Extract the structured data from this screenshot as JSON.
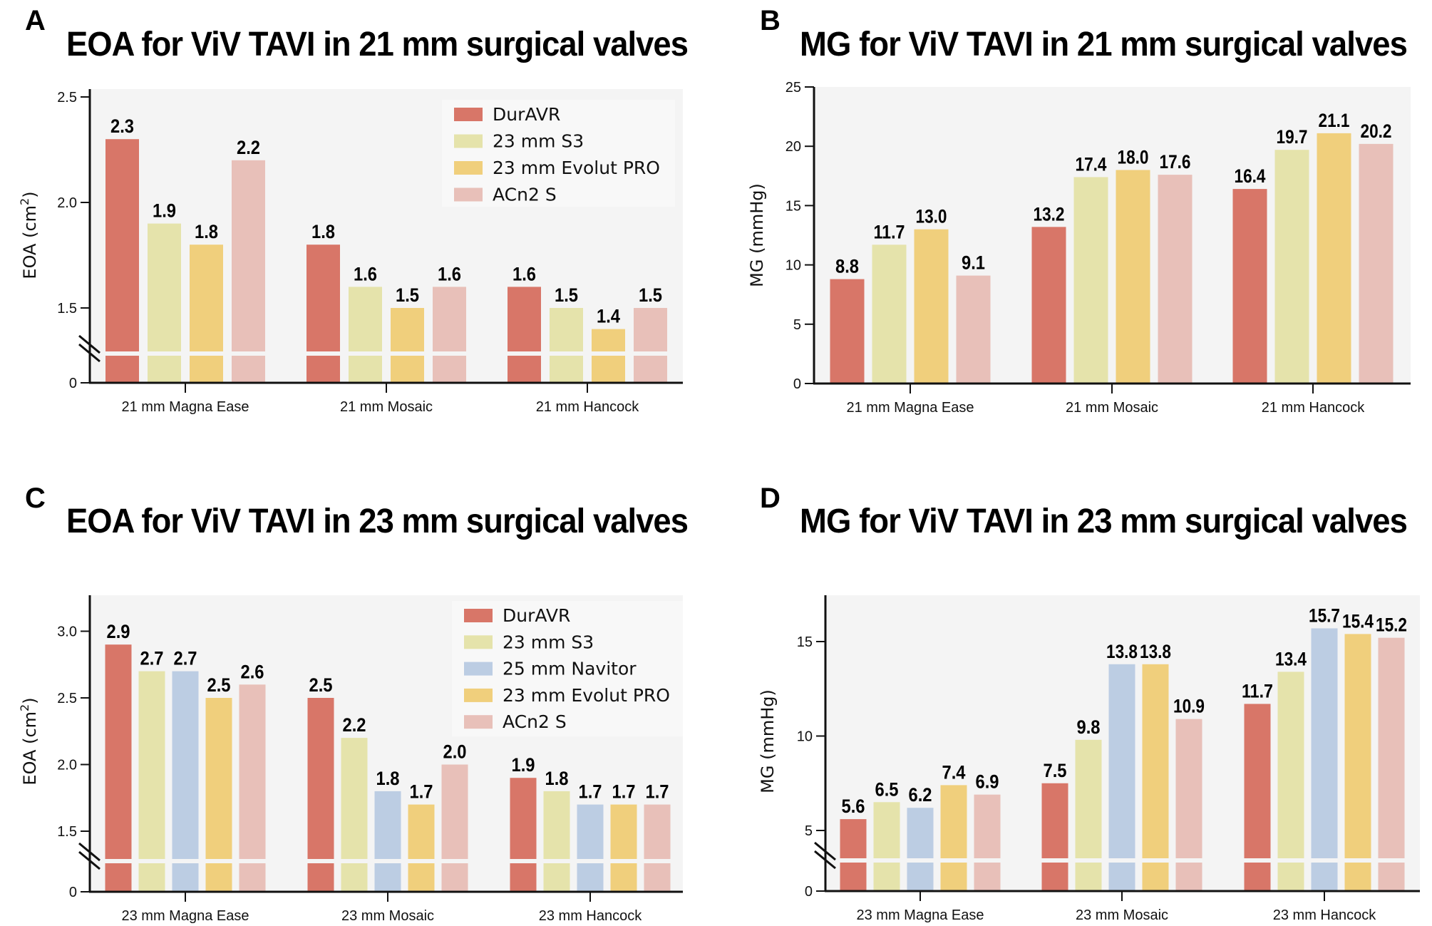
{
  "chart_data": [
    {
      "panel": "A",
      "type": "bar",
      "title": "EOA for ViV TAVI in 21 mm surgical valves",
      "ylabel": "EOA (cm²)",
      "ylabel_main": "EOA (cm",
      "ylabel_sup": "2",
      "ylabel_close": ")",
      "xlabel": "",
      "categories": [
        "21 mm Magna Ease",
        "21 mm Mosaic",
        "21 mm Hancock"
      ],
      "yticks": [
        "2.5",
        "2.0",
        "1.5",
        "0"
      ],
      "ylim": [
        0,
        2.5
      ],
      "axis_break": true,
      "legend_position": "top-right",
      "grid": false,
      "series": [
        {
          "name": "DurAVR",
          "color": "#d87668",
          "values": [
            2.3,
            1.8,
            1.6
          ],
          "labels": [
            "2.3",
            "1.8",
            "1.6"
          ]
        },
        {
          "name": "23 mm S3",
          "color": "#e5e3ab",
          "values": [
            1.9,
            1.6,
            1.5
          ],
          "labels": [
            "1.9",
            "1.6",
            "1.5"
          ]
        },
        {
          "name": "23 mm Evolut PRO",
          "color": "#f0cf7c",
          "values": [
            1.8,
            1.5,
            1.4
          ],
          "labels": [
            "1.8",
            "1.5",
            "1.4"
          ]
        },
        {
          "name": "ACn2 S",
          "color": "#e8c0b9",
          "values": [
            2.2,
            1.6,
            1.5
          ],
          "labels": [
            "2.2",
            "1.6",
            "1.5"
          ]
        }
      ]
    },
    {
      "panel": "B",
      "type": "bar",
      "title": "MG for ViV TAVI in 21 mm surgical valves",
      "ylabel": "MG (mmHg)",
      "ylabel_main": "MG (mmHg)",
      "ylabel_sup": "",
      "ylabel_close": "",
      "xlabel": "",
      "categories": [
        "21 mm Magna Ease",
        "21 mm Mosaic",
        "21 mm Hancock"
      ],
      "yticks": [
        "25",
        "20",
        "15",
        "10",
        "5",
        "0"
      ],
      "ylim": [
        0,
        25
      ],
      "axis_break": false,
      "legend_position": "none",
      "grid": false,
      "series": [
        {
          "name": "DurAVR",
          "color": "#d87668",
          "values": [
            8.8,
            13.2,
            16.4
          ],
          "labels": [
            "8.8",
            "13.2",
            "16.4"
          ]
        },
        {
          "name": "23 mm S3",
          "color": "#e5e3ab",
          "values": [
            11.7,
            17.4,
            19.7
          ],
          "labels": [
            "11.7",
            "17.4",
            "19.7"
          ]
        },
        {
          "name": "23 mm Evolut PRO",
          "color": "#f0cf7c",
          "values": [
            13.0,
            18.0,
            21.1
          ],
          "labels": [
            "13.0",
            "18.0",
            "21.1"
          ]
        },
        {
          "name": "ACn2 S",
          "color": "#e8c0b9",
          "values": [
            9.1,
            17.6,
            20.2
          ],
          "labels": [
            "9.1",
            "17.6",
            "20.2"
          ]
        }
      ]
    },
    {
      "panel": "C",
      "type": "bar",
      "title": "EOA for ViV TAVI in 23 mm surgical valves",
      "ylabel": "EOA (cm²)",
      "ylabel_main": "EOA (cm",
      "ylabel_sup": "2",
      "ylabel_close": ")",
      "xlabel": "",
      "categories": [
        "23 mm Magna Ease",
        "23 mm Mosaic",
        "23 mm Hancock"
      ],
      "yticks": [
        "3.0",
        "2.5",
        "2.0",
        "1.5",
        "0"
      ],
      "ylim": [
        0,
        3.25
      ],
      "axis_break": true,
      "legend_position": "top-right",
      "grid": false,
      "series": [
        {
          "name": "DurAVR",
          "color": "#d87668",
          "values": [
            2.9,
            2.5,
            1.9
          ],
          "labels": [
            "2.9",
            "2.5",
            "1.9"
          ]
        },
        {
          "name": "23 mm S3",
          "color": "#e5e3ab",
          "values": [
            2.7,
            2.2,
            1.8
          ],
          "labels": [
            "2.7",
            "2.2",
            "1.8"
          ]
        },
        {
          "name": "25 mm Navitor",
          "color": "#bccde3",
          "values": [
            2.7,
            1.8,
            1.7
          ],
          "labels": [
            "2.7",
            "1.8",
            "1.7"
          ]
        },
        {
          "name": "23 mm Evolut PRO",
          "color": "#f0cf7c",
          "values": [
            2.5,
            1.7,
            1.7
          ],
          "labels": [
            "2.5",
            "1.7",
            "1.7"
          ]
        },
        {
          "name": "ACn2 S",
          "color": "#e8c0b9",
          "values": [
            2.6,
            2.0,
            1.7
          ],
          "labels": [
            "2.6",
            "2.0",
            "1.7"
          ]
        }
      ]
    },
    {
      "panel": "D",
      "type": "bar",
      "title": "MG for ViV TAVI in 23 mm surgical valves",
      "ylabel": "MG (mmHg)",
      "ylabel_main": "MG (mmHg)",
      "ylabel_sup": "",
      "ylabel_close": "",
      "xlabel": "",
      "categories": [
        "23 mm Magna Ease",
        "23 mm Mosaic",
        "23 mm Hancock"
      ],
      "yticks": [
        "15",
        "10",
        "5",
        "0"
      ],
      "ylim": [
        0,
        17.5
      ],
      "axis_break": true,
      "legend_position": "none",
      "grid": false,
      "series": [
        {
          "name": "DurAVR",
          "color": "#d87668",
          "values": [
            5.6,
            7.5,
            11.7
          ],
          "labels": [
            "5.6",
            "7.5",
            "11.7"
          ]
        },
        {
          "name": "23 mm S3",
          "color": "#e5e3ab",
          "values": [
            6.5,
            9.8,
            13.4
          ],
          "labels": [
            "6.5",
            "9.8",
            "13.4"
          ]
        },
        {
          "name": "25 mm Navitor",
          "color": "#bccde3",
          "values": [
            6.2,
            13.8,
            15.7
          ],
          "labels": [
            "6.2",
            "13.8",
            "15.7"
          ]
        },
        {
          "name": "23 mm Evolut PRO",
          "color": "#f0cf7c",
          "values": [
            7.4,
            13.8,
            15.4
          ],
          "labels": [
            "7.4",
            "13.8",
            "15.4"
          ]
        },
        {
          "name": "ACn2 S",
          "color": "#e8c0b9",
          "values": [
            6.9,
            10.9,
            15.2
          ],
          "labels": [
            "6.9",
            "10.9",
            "15.2"
          ]
        }
      ]
    }
  ],
  "colors": {
    "plot_background": "#f4f4f4",
    "legend_background": "#f8f8f8",
    "axis": "#111111"
  }
}
